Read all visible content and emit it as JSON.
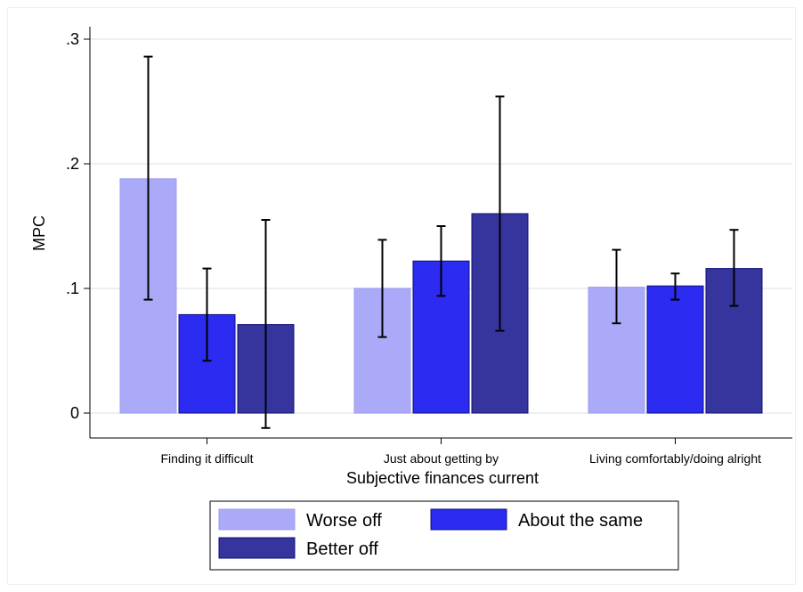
{
  "chart_data": {
    "type": "bar",
    "xlabel": "Subjective finances current",
    "ylabel": "MPC",
    "ylim": [
      -0.02,
      0.31
    ],
    "yticks": [
      0,
      0.1,
      0.2,
      0.3
    ],
    "ytick_labels": [
      "0",
      ".1",
      ".2",
      ".3"
    ],
    "categories": [
      "Finding it difficult",
      "Just about getting by",
      "Living comfortably/doing alright"
    ],
    "series": [
      {
        "name": "Worse off",
        "color": "#aaaaf8",
        "values": [
          0.188,
          0.1,
          0.101
        ],
        "ci_low": [
          0.091,
          0.061,
          0.072
        ],
        "ci_high": [
          0.286,
          0.139,
          0.131
        ]
      },
      {
        "name": "About the same",
        "color": "#2b2bf2",
        "values": [
          0.079,
          0.122,
          0.102
        ],
        "ci_low": [
          0.042,
          0.094,
          0.091
        ],
        "ci_high": [
          0.116,
          0.15,
          0.112
        ]
      },
      {
        "name": "Better off",
        "color": "#36359e",
        "values": [
          0.071,
          0.16,
          0.116
        ],
        "ci_low": [
          -0.012,
          0.066,
          0.086
        ],
        "ci_high": [
          0.155,
          0.254,
          0.147
        ]
      }
    ],
    "grid": true,
    "legend_position": "bottom"
  }
}
